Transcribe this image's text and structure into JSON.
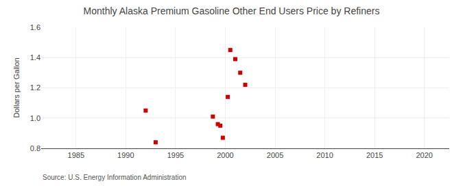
{
  "chart_data": {
    "type": "scatter",
    "title": "Monthly Alaska Premium Gasoline Other End Users Price by Refiners",
    "ylabel": "Dollars per Gallon",
    "annotations": [
      "Source: U.S. Energy Information Administration"
    ],
    "x": [
      1992.0,
      1993.0,
      1998.75,
      1999.25,
      1999.5,
      1999.75,
      2000.25,
      2000.5,
      2001.0,
      2001.5,
      2002.0
    ],
    "values": [
      1.05,
      0.84,
      1.01,
      0.96,
      0.95,
      0.87,
      1.14,
      1.45,
      1.39,
      1.3,
      1.22
    ],
    "color": "#cc0000",
    "marker": "square",
    "xlim": [
      1981.5,
      2022.5
    ],
    "xticks": [
      1985,
      1990,
      1995,
      2000,
      2005,
      2010,
      2015,
      2020
    ],
    "ylim": [
      0.8,
      1.6
    ],
    "yticks": [
      0.8,
      {
        "value": 1.0,
        "label": "1.0"
      },
      1.2,
      1.4,
      1.6
    ],
    "grid": true
  }
}
